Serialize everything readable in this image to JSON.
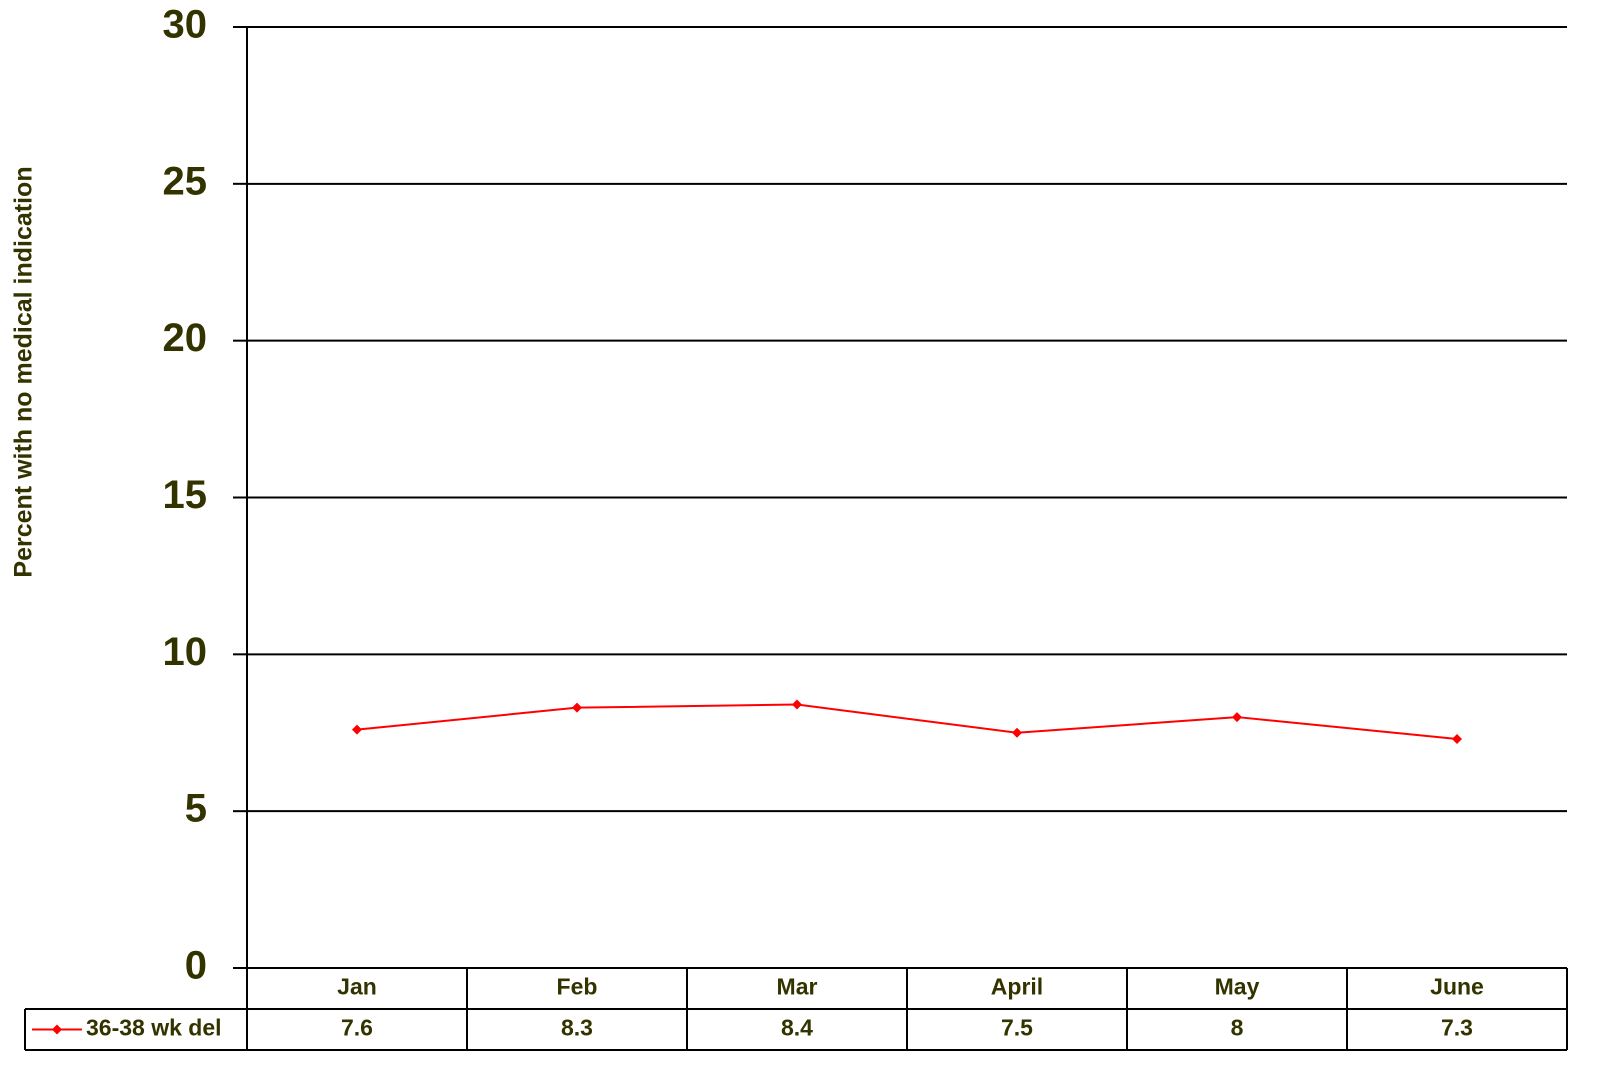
{
  "chart_data": {
    "type": "line",
    "y_label": "Percent with no medical indication",
    "categories": [
      "Jan",
      "Feb",
      "Mar",
      "April",
      "May",
      "June"
    ],
    "series": [
      {
        "name": "36-38 wk del",
        "color": "#ff0000",
        "values": [
          7.6,
          8.3,
          8.4,
          7.5,
          8,
          7.3
        ]
      }
    ],
    "ylim": [
      0,
      30
    ],
    "yticks": [
      0,
      5,
      10,
      15,
      20,
      25,
      30
    ],
    "grid": true,
    "data_table": true
  }
}
